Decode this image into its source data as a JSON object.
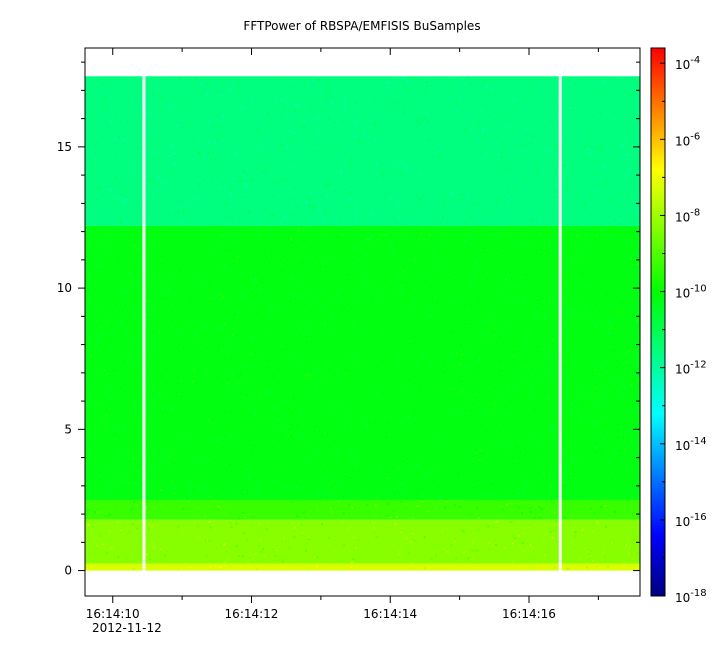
{
  "chart_data": {
    "type": "heatmap",
    "title": "FFTPower of RBSPA/EMFISIS  BuSamples",
    "xlabel": "",
    "ylabel": "",
    "x_range": [
      "16:14:09.6",
      "16:14:17.6"
    ],
    "x_ticks": [
      {
        "t": 10,
        "label": "16:14:10"
      },
      {
        "t": 12,
        "label": "16:14:12"
      },
      {
        "t": 14,
        "label": "16:14:14"
      },
      {
        "t": 16,
        "label": "16:14:16"
      }
    ],
    "x_minor_ticks": [
      11,
      13,
      15,
      17
    ],
    "date_label": "2012-11-12",
    "ylim": [
      -0.9,
      18.5
    ],
    "y_ticks": [
      0,
      5,
      10,
      15
    ],
    "data_top_y": 17.5,
    "gaps_t": [
      10.45,
      16.45
    ],
    "bands": [
      {
        "y_from": 0.0,
        "y_to": 0.25,
        "log_power": -7.3
      },
      {
        "y_from": 0.25,
        "y_to": 1.8,
        "log_power": -8.3
      },
      {
        "y_from": 1.8,
        "y_to": 2.5,
        "log_power": -9.3
      },
      {
        "y_from": 2.5,
        "y_to": 12.2,
        "log_power": -10.2
      },
      {
        "y_from": 12.2,
        "y_to": 17.5,
        "log_power": -11.6
      }
    ],
    "colorbar": {
      "scale": "log",
      "range": [
        -18,
        -3.6
      ],
      "tick_exponents": [
        -18,
        -16,
        -14,
        -12,
        -10,
        -8,
        -6,
        -4
      ],
      "base_label": "10",
      "colormap": [
        "#00007f",
        "#0000ff",
        "#007fff",
        "#00ffff",
        "#00ff7f",
        "#00ff00",
        "#7fff00",
        "#ffff00",
        "#ff7f00",
        "#ff0000"
      ]
    },
    "grid": false,
    "legend": "none"
  }
}
